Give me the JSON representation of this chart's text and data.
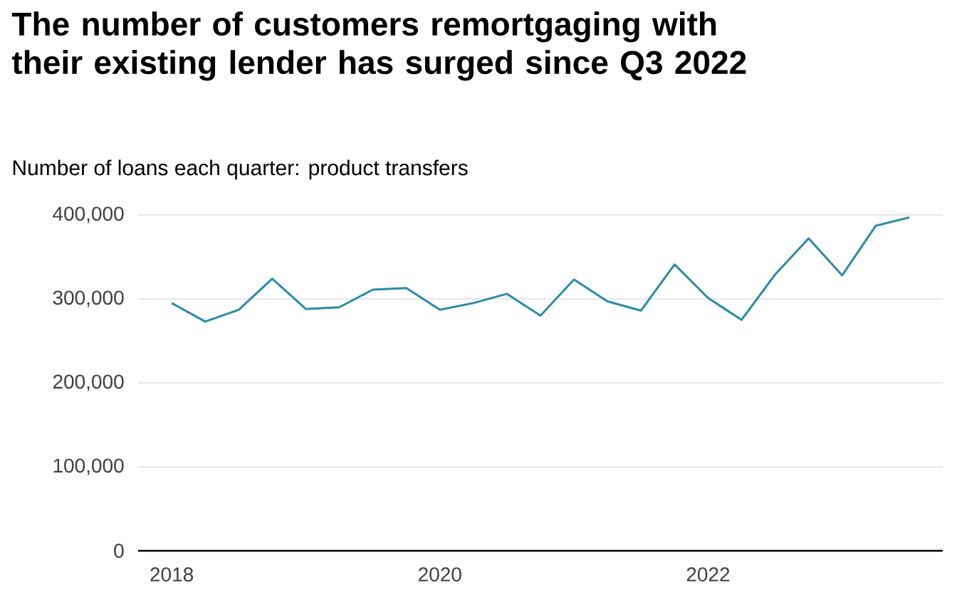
{
  "chart_data": {
    "type": "line",
    "title": "The number of customers remortgaging with their existing lender has surged since Q3 2022",
    "subtitle": "Number of loans each quarter: product transfers",
    "x": [
      "2018-01",
      "2018-04",
      "2018-07",
      "2018-10",
      "2019-01",
      "2019-04",
      "2019-07",
      "2019-10",
      "2020-01",
      "2020-04",
      "2020-07",
      "2020-10",
      "2021-01",
      "2021-04",
      "2021-07",
      "2021-10",
      "2022-01",
      "2022-04",
      "2022-07",
      "2022-10",
      "2023-01",
      "2023-04",
      "2023-07"
    ],
    "series": [
      {
        "color": "#2a8ca6",
        "values": [
          295000,
          273000,
          287000,
          324000,
          288000,
          290000,
          311000,
          313000,
          287000,
          295000,
          306000,
          280000,
          323000,
          297000,
          286000,
          341000,
          301000,
          275000,
          329000,
          372000,
          328000,
          387000,
          397000
        ]
      }
    ],
    "xlim": [
      "2017-10",
      "2023-10"
    ],
    "xticks": [
      {
        "value": "2018",
        "label": "2018"
      },
      {
        "value": "2020",
        "label": "2020"
      },
      {
        "value": "2022",
        "label": "2022"
      }
    ],
    "ylim": [
      0,
      400000
    ],
    "yticks": [
      0,
      {
        "value": 100000,
        "label": "100,000"
      },
      {
        "value": 200000,
        "label": "200,000"
      },
      {
        "value": 300000,
        "label": "300,000"
      },
      {
        "value": 400000,
        "label": "400,000"
      }
    ],
    "grid": "y",
    "line_style": "solid"
  }
}
